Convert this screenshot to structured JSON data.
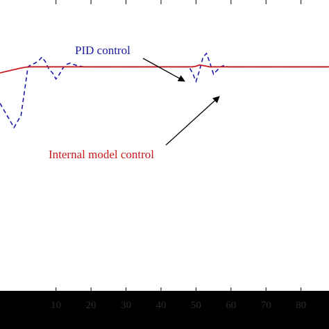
{
  "chart_data": {
    "type": "line",
    "title": "",
    "xlabel": "",
    "ylabel": "",
    "xlim": [
      -6,
      88
    ],
    "ylim": [
      -1.85,
      0.55
    ],
    "x_ticks": [
      10,
      20,
      30,
      40,
      50,
      60,
      70,
      80
    ],
    "x_tick_labels": [
      "10",
      "20",
      "30",
      "40",
      "50",
      "60",
      "70",
      "80"
    ],
    "grid": false,
    "series": [
      {
        "name": "PID control",
        "color": "#1a1aa6",
        "style": "dashed",
        "x": [
          -6,
          -5,
          -4,
          -3,
          -2,
          -1,
          0,
          1,
          2,
          3,
          4,
          5,
          6,
          7,
          8,
          9,
          10,
          11,
          12,
          13,
          14,
          15,
          16,
          17,
          18,
          20,
          25,
          30,
          35,
          40,
          45,
          48,
          49,
          50,
          51,
          52,
          53,
          54,
          55,
          56,
          57,
          58,
          59,
          60,
          65,
          70,
          75,
          80,
          85,
          88
        ],
        "y": [
          -0.3,
          -0.35,
          -0.4,
          -0.45,
          -0.5,
          -0.45,
          -0.4,
          -0.2,
          0.0,
          0.02,
          0.03,
          0.05,
          0.08,
          0.04,
          -0.02,
          -0.05,
          -0.1,
          -0.06,
          -0.01,
          0.02,
          0.03,
          0.02,
          0.01,
          0.005,
          0.0,
          0.0,
          0.0,
          0.0,
          0.0,
          0.0,
          0.0,
          0.0,
          -0.05,
          -0.12,
          -0.03,
          0.08,
          0.11,
          0.03,
          -0.06,
          -0.03,
          0.0,
          0.01,
          0.0,
          0.0,
          0.0,
          0.0,
          0.0,
          0.0,
          0.0,
          0.0
        ]
      },
      {
        "name": "Internal model control",
        "color": "#c8191e",
        "style": "solid",
        "x": [
          -6,
          -3,
          0,
          2,
          4,
          6,
          10,
          20,
          40,
          48,
          49,
          50,
          51,
          52,
          53,
          54,
          56,
          60,
          70,
          80,
          88
        ],
        "y": [
          -0.05,
          -0.03,
          -0.01,
          0.0,
          0.0,
          0.0,
          0.0,
          0.0,
          0.0,
          0.0,
          0.0,
          0.005,
          0.015,
          0.01,
          0.005,
          0.0,
          0.0,
          0.0,
          0.0,
          0.0,
          0.0
        ]
      }
    ],
    "annotations": [
      {
        "text": "PID control",
        "color": "#1a1aa6"
      },
      {
        "text": "Internal model control",
        "color": "#c8191e"
      }
    ]
  }
}
